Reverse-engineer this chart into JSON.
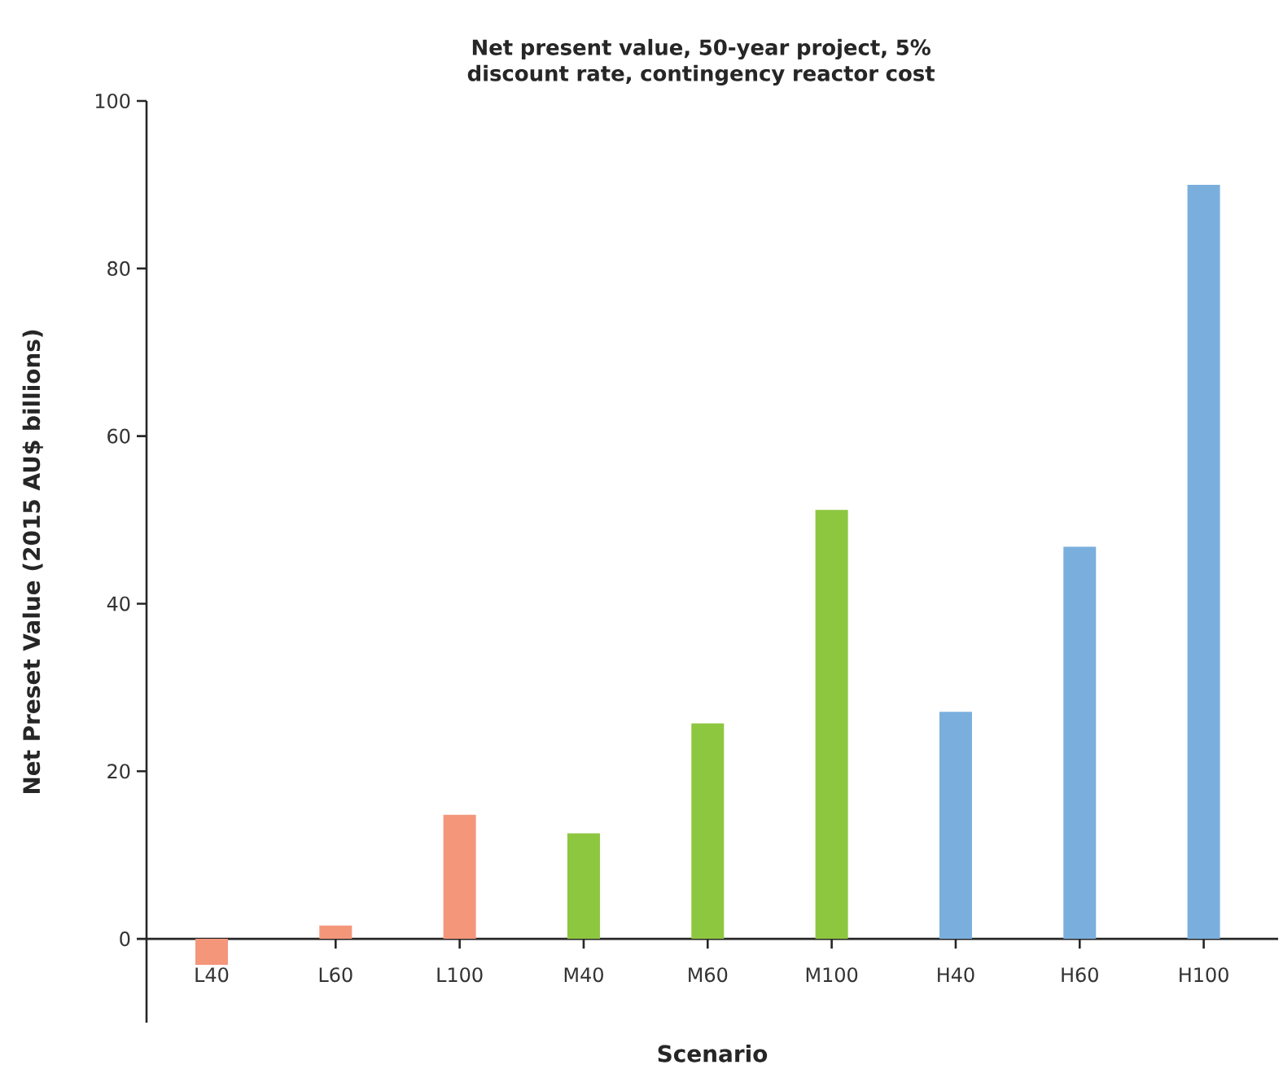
{
  "chart_data": {
    "type": "bar",
    "title": "Net present value, 50-year project, 5% discount rate, contingency reactor cost",
    "xlabel": "Scenario",
    "ylabel": "Net Preset Value (2015 AU$ billions)",
    "categories": [
      "L40",
      "L60",
      "L100",
      "M40",
      "M60",
      "M100",
      "H40",
      "H60",
      "H100"
    ],
    "values": [
      -3.1,
      1.6,
      14.8,
      12.6,
      25.7,
      51.2,
      27.1,
      46.8,
      90.0
    ],
    "colors": [
      "#f4967a",
      "#f4967a",
      "#f4967a",
      "#8dc63f",
      "#8dc63f",
      "#8dc63f",
      "#7aafdd",
      "#7aafdd",
      "#7aafdd"
    ],
    "ylim": [
      -10,
      100
    ],
    "yticks": [
      0,
      20,
      40,
      60,
      80,
      100
    ],
    "grid": false
  }
}
